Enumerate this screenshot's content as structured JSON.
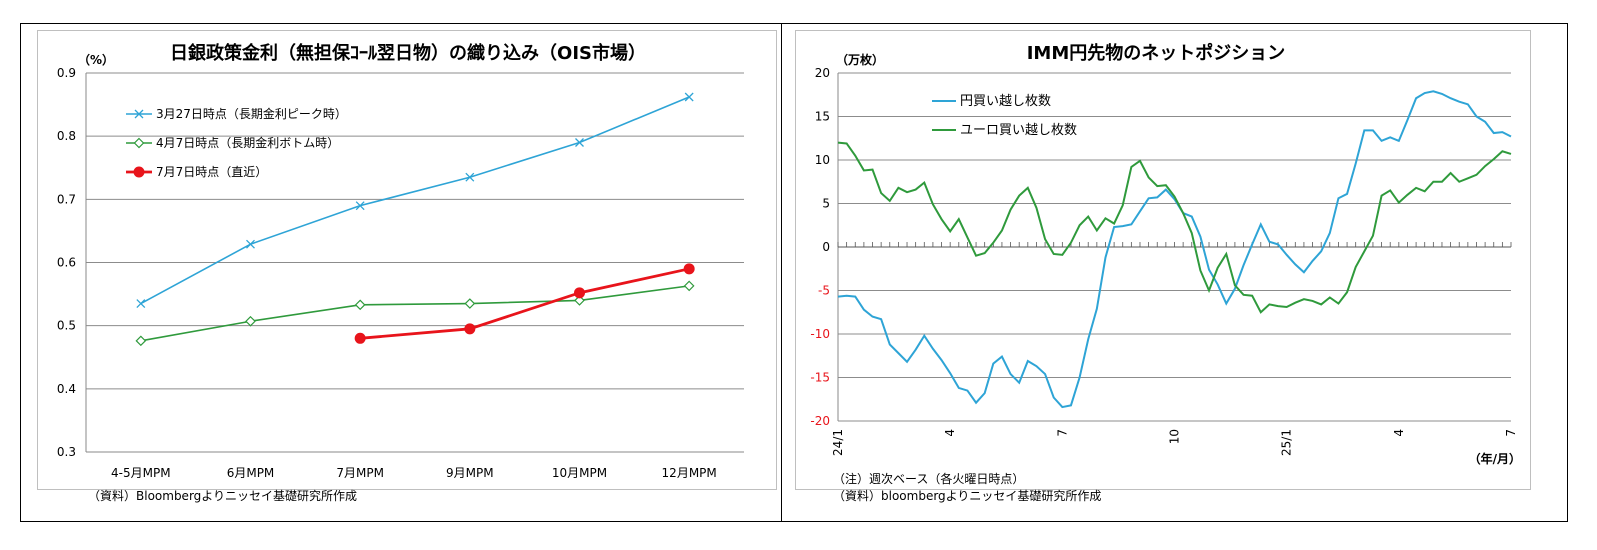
{
  "chart_data": [
    {
      "type": "line",
      "title": "日銀政策金利（無担保ｺｰﾙ翌日物）の織り込み（OIS市場）",
      "ylabel": "（%）",
      "ylim": [
        0.3,
        0.9
      ],
      "yticks": [
        "0.9",
        "0.8",
        "0.7",
        "0.6",
        "0.5",
        "0.4",
        "0.3"
      ],
      "categories": [
        "4-5月MPM",
        "6月MPM",
        "7月MPM",
        "9月MPM",
        "10月MPM",
        "12月MPM"
      ],
      "legend_position": "top-left",
      "source": "（資料）Bloombergよりニッセイ基礎研究所作成",
      "series": [
        {
          "name": "3月27日時点（長期金利ピーク時）",
          "color": "#2ea4d6",
          "marker": "x",
          "values": [
            0.535,
            0.629,
            0.69,
            0.735,
            0.79,
            0.862
          ]
        },
        {
          "name": "4月7日時点（長期金利ボトム時）",
          "color": "#2f9a3c",
          "marker": "diamond",
          "values": [
            0.476,
            0.507,
            0.533,
            0.535,
            0.54,
            0.563
          ]
        },
        {
          "name": "7月7日時点（直近）",
          "color": "#e8141b",
          "marker": "circle",
          "values": [
            null,
            null,
            0.48,
            0.495,
            0.552,
            0.59
          ]
        }
      ]
    },
    {
      "type": "line",
      "title": "IMM円先物のネットポジション",
      "ylabel": "（万枚）",
      "ylim": [
        -20,
        20
      ],
      "yticks": [
        "20",
        "15",
        "10",
        "5",
        "0",
        "-5",
        "-10",
        "-15",
        "-20"
      ],
      "xtick_labels": [
        "24/1",
        "4",
        "7",
        "10",
        "25/1",
        "4",
        "7"
      ],
      "xtick_weeks": [
        0,
        13,
        26,
        39,
        52,
        65,
        78
      ],
      "xlabel": "（年/月）",
      "legend_position": "top-left",
      "note": "（注）週次ベース（各火曜日時点）",
      "source": "（資料）bloombergよりニッセイ基礎研究所作成",
      "series": [
        {
          "name": "円買い越し枚数",
          "color": "#2ea4d6",
          "values": [
            -5.7,
            -5.6,
            -5.7,
            -7.2,
            -8.0,
            -8.3,
            -11.2,
            -12.2,
            -13.2,
            -11.8,
            -10.2,
            -11.7,
            -13.0,
            -14.5,
            -16.2,
            -16.5,
            -17.9,
            -16.8,
            -13.4,
            -12.6,
            -14.6,
            -15.6,
            -13.1,
            -13.7,
            -14.6,
            -17.3,
            -18.4,
            -18.2,
            -15.0,
            -10.6,
            -7.1,
            -1.2,
            2.3,
            2.4,
            2.6,
            4.1,
            5.6,
            5.7,
            6.6,
            5.5,
            3.9,
            3.5,
            1.2,
            -2.6,
            -4.3,
            -6.5,
            -4.8,
            -2.1,
            0.3,
            2.6,
            0.6,
            0.3,
            -0.9,
            -2.0,
            -2.9,
            -1.6,
            -0.5,
            1.6,
            5.6,
            6.1,
            9.6,
            13.4,
            13.4,
            12.2,
            12.6,
            12.2,
            14.6,
            17.1,
            17.7,
            17.9,
            17.6,
            17.1,
            16.7,
            16.4,
            15.0,
            14.4,
            13.1,
            13.2,
            12.7
          ]
        },
        {
          "name": "ユーロ買い越し枚数",
          "color": "#2f9a3c",
          "values": [
            12.0,
            11.9,
            10.5,
            8.8,
            8.9,
            6.2,
            5.3,
            6.8,
            6.3,
            6.6,
            7.4,
            4.9,
            3.2,
            1.8,
            3.2,
            1.1,
            -1.0,
            -0.7,
            0.5,
            1.9,
            4.3,
            5.9,
            6.8,
            4.5,
            0.9,
            -0.8,
            -0.9,
            0.5,
            2.5,
            3.5,
            1.9,
            3.3,
            2.7,
            4.8,
            9.2,
            9.9,
            8.0,
            7.0,
            7.1,
            5.8,
            3.9,
            1.6,
            -2.7,
            -5.0,
            -2.4,
            -0.8,
            -4.4,
            -5.5,
            -5.6,
            -7.5,
            -6.6,
            -6.8,
            -6.9,
            -6.4,
            -6.0,
            -6.2,
            -6.6,
            -5.8,
            -6.5,
            -5.2,
            -2.3,
            -0.5,
            1.3,
            5.9,
            6.5,
            5.1,
            6.0,
            6.8,
            6.4,
            7.5,
            7.5,
            8.5,
            7.5,
            7.9,
            8.3,
            9.3,
            10.1,
            11.0,
            10.7
          ]
        }
      ]
    }
  ]
}
